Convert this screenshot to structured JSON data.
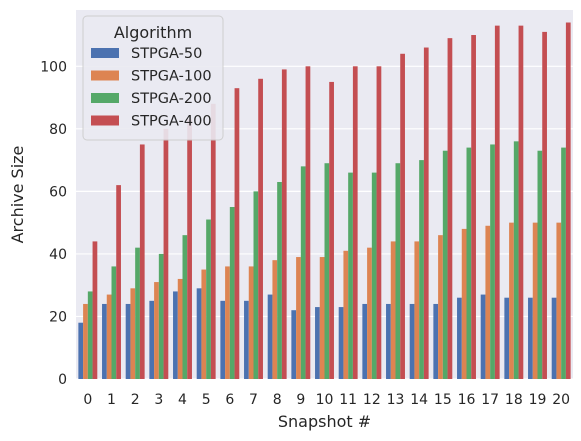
{
  "chart_data": {
    "type": "bar",
    "title": "",
    "xlabel": "Snapshot #",
    "ylabel": "Archive Size",
    "categories": [
      "0",
      "1",
      "2",
      "3",
      "4",
      "5",
      "6",
      "7",
      "8",
      "9",
      "10",
      "11",
      "12",
      "13",
      "14",
      "15",
      "16",
      "17",
      "18",
      "19",
      "20"
    ],
    "yticks": [
      "0",
      "20",
      "40",
      "60",
      "80",
      "100"
    ],
    "ylim": [
      0,
      118
    ],
    "grid": true,
    "legend": {
      "title": "Algorithm",
      "placement": "top-left"
    },
    "series": [
      {
        "name": "STPGA-50",
        "color": "#4c72b0",
        "values": [
          18,
          24,
          24,
          25,
          28,
          29,
          25,
          25,
          27,
          22,
          23,
          23,
          24,
          24,
          24,
          24,
          26,
          27,
          26,
          26,
          26
        ]
      },
      {
        "name": "STPGA-100",
        "color": "#dd8452",
        "values": [
          24,
          27,
          29,
          31,
          32,
          35,
          36,
          36,
          38,
          39,
          39,
          41,
          42,
          44,
          44,
          46,
          48,
          49,
          50,
          50,
          50
        ]
      },
      {
        "name": "STPGA-200",
        "color": "#55a868",
        "values": [
          28,
          36,
          42,
          40,
          46,
          51,
          55,
          60,
          63,
          68,
          69,
          66,
          66,
          69,
          70,
          73,
          74,
          75,
          76,
          73,
          74
        ]
      },
      {
        "name": "STPGA-400",
        "color": "#c44e52",
        "values": [
          44,
          62,
          75,
          80,
          83,
          88,
          93,
          96,
          99,
          100,
          95,
          100,
          100,
          104,
          106,
          109,
          110,
          113,
          113,
          111,
          114
        ]
      }
    ]
  }
}
